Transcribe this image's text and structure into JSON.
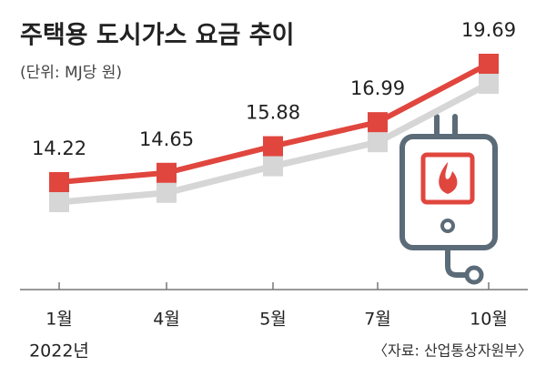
{
  "chart_data": {
    "type": "line",
    "title": "주택용 도시가스 요금 추이",
    "subtitle": "(단위: MJ당 원)",
    "categories": [
      "1월",
      "4월",
      "5월",
      "7월",
      "10월"
    ],
    "year_label": "2022년",
    "values": [
      14.22,
      14.65,
      15.88,
      16.99,
      19.69
    ],
    "color": "#e0463e",
    "source": "〈자료: 산업통상자원부〉"
  }
}
